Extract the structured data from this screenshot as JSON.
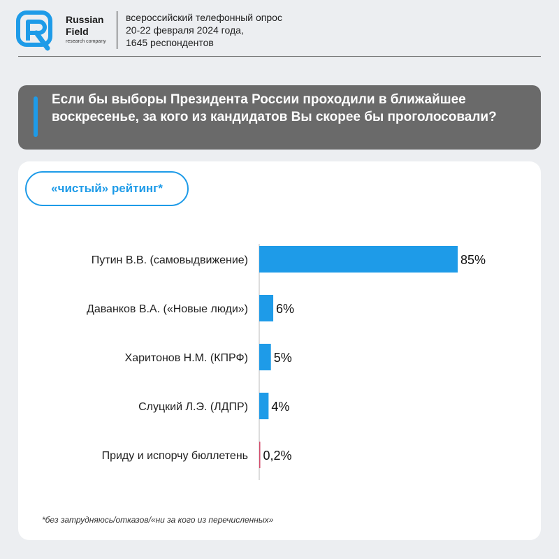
{
  "header": {
    "brand_line1": "Russian",
    "brand_line2": "Field",
    "brand_sub": "research company",
    "meta_line1": "всероссийский телефонный опрос",
    "meta_line2": "20-22 февраля 2024 года,",
    "meta_line3": "1645 респондентов"
  },
  "question": "Если бы выборы Президента России проходили в ближайшее воскресенье, за кого из кандидатов Вы скорее бы проголосовали?",
  "rating_label": "«чистый» рейтинг*",
  "footnote": "*без затрудняюсь/отказов/«ни за кого из перечисленных»",
  "colors": {
    "accent": "#1e9be8",
    "bar": "#1e9be8",
    "spoil_bar": "#d44a6a"
  },
  "chart_data": {
    "type": "bar",
    "orientation": "horizontal",
    "categories": [
      "Путин В.В. (самовыдвижение)",
      "Даванков В.А. («Новые люди»)",
      "Харитонов Н.М. (КПРФ)",
      "Слуцкий Л.Э. (ЛДПР)",
      "Приду и испорчу бюллетень"
    ],
    "values": [
      85,
      6,
      5,
      4,
      0.2
    ],
    "value_labels": [
      "85%",
      "6%",
      "5%",
      "4%",
      "0,2%"
    ],
    "xlim": [
      0,
      85
    ],
    "grid": false,
    "legend": "none"
  }
}
